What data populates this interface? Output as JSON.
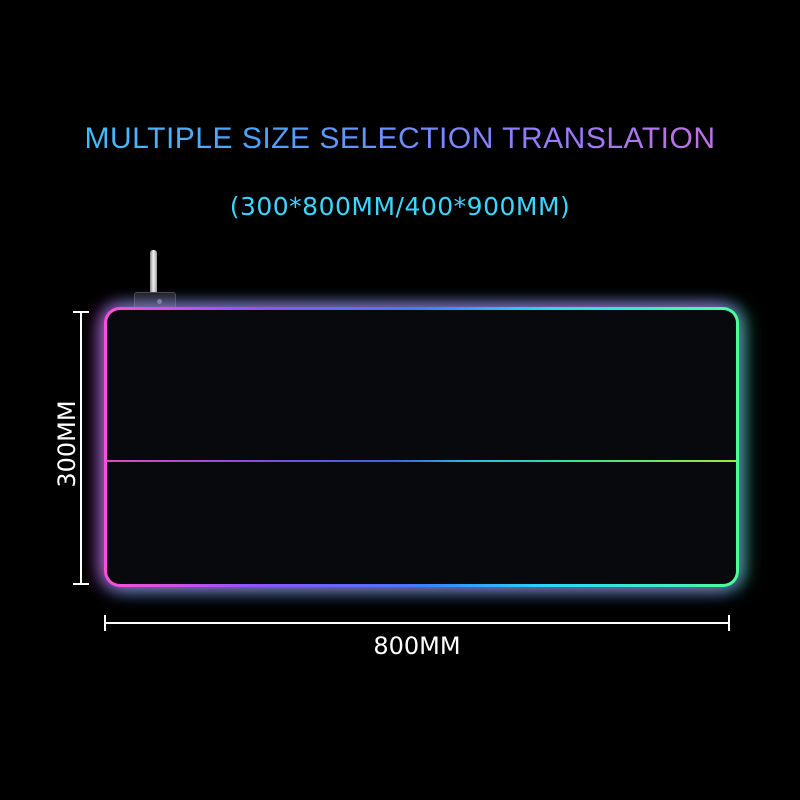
{
  "headline": "MULTIPLE SIZE SELECTION TRANSLATION",
  "sizes": "(300*800MM/400*900MM)",
  "dimensions": {
    "height_label": "300MM",
    "width_label": "800MM"
  },
  "colors": {
    "background": "#000000",
    "glow_left": "#ff4fd8",
    "glow_mid": "#3f7dff",
    "glow_right": "#4dff9a",
    "sizes_text": "#3ad6ff"
  },
  "icons": {
    "cable": "usb-cable-icon",
    "plug": "usb-plug-icon"
  }
}
